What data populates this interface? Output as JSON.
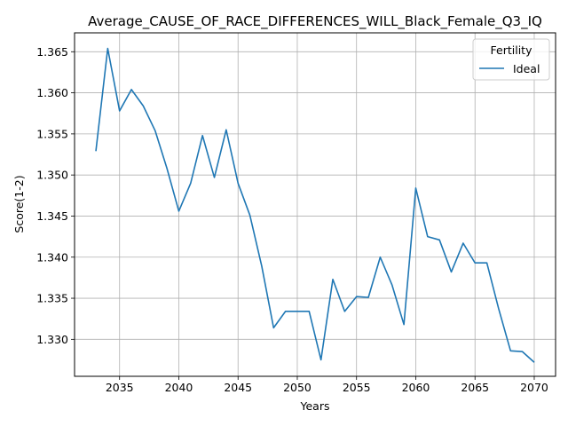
{
  "chart_data": {
    "type": "line",
    "title": "Average_CAUSE_OF_RACE_DIFFERENCES_WILL_Black_Female_Q3_IQ",
    "xlabel": "Years",
    "ylabel": "Score(1-2)",
    "xlim": [
      2031.2,
      2071.8
    ],
    "ylim": [
      1.3255,
      1.3673
    ],
    "x_ticks": [
      2035,
      2040,
      2045,
      2050,
      2055,
      2060,
      2065,
      2070
    ],
    "y_ticks": [
      1.33,
      1.335,
      1.34,
      1.345,
      1.35,
      1.355,
      1.36,
      1.365
    ],
    "grid": true,
    "legend": {
      "title": "Fertility",
      "placement": "upper-right"
    },
    "series": [
      {
        "name": "Ideal",
        "color": "#1f77b4",
        "x": [
          2033,
          2034,
          2035,
          2036,
          2037,
          2038,
          2039,
          2040,
          2041,
          2042,
          2043,
          2044,
          2045,
          2046,
          2047,
          2048,
          2049,
          2050,
          2051,
          2052,
          2053,
          2054,
          2055,
          2056,
          2057,
          2058,
          2059,
          2060,
          2061,
          2062,
          2063,
          2064,
          2065,
          2066,
          2067,
          2068,
          2069,
          2070
        ],
        "values": [
          1.3529,
          1.3654,
          1.3578,
          1.3604,
          1.3584,
          1.3554,
          1.3508,
          1.3456,
          1.349,
          1.3548,
          1.3497,
          1.3555,
          1.349,
          1.3451,
          1.3389,
          1.3314,
          1.3334,
          1.3334,
          1.3334,
          1.3275,
          1.3373,
          1.3334,
          1.3352,
          1.3351,
          1.34,
          1.3366,
          1.3318,
          1.3484,
          1.3425,
          1.3421,
          1.3382,
          1.3417,
          1.3393,
          1.3393,
          1.3337,
          1.3286,
          1.3285,
          1.3272
        ]
      }
    ]
  }
}
